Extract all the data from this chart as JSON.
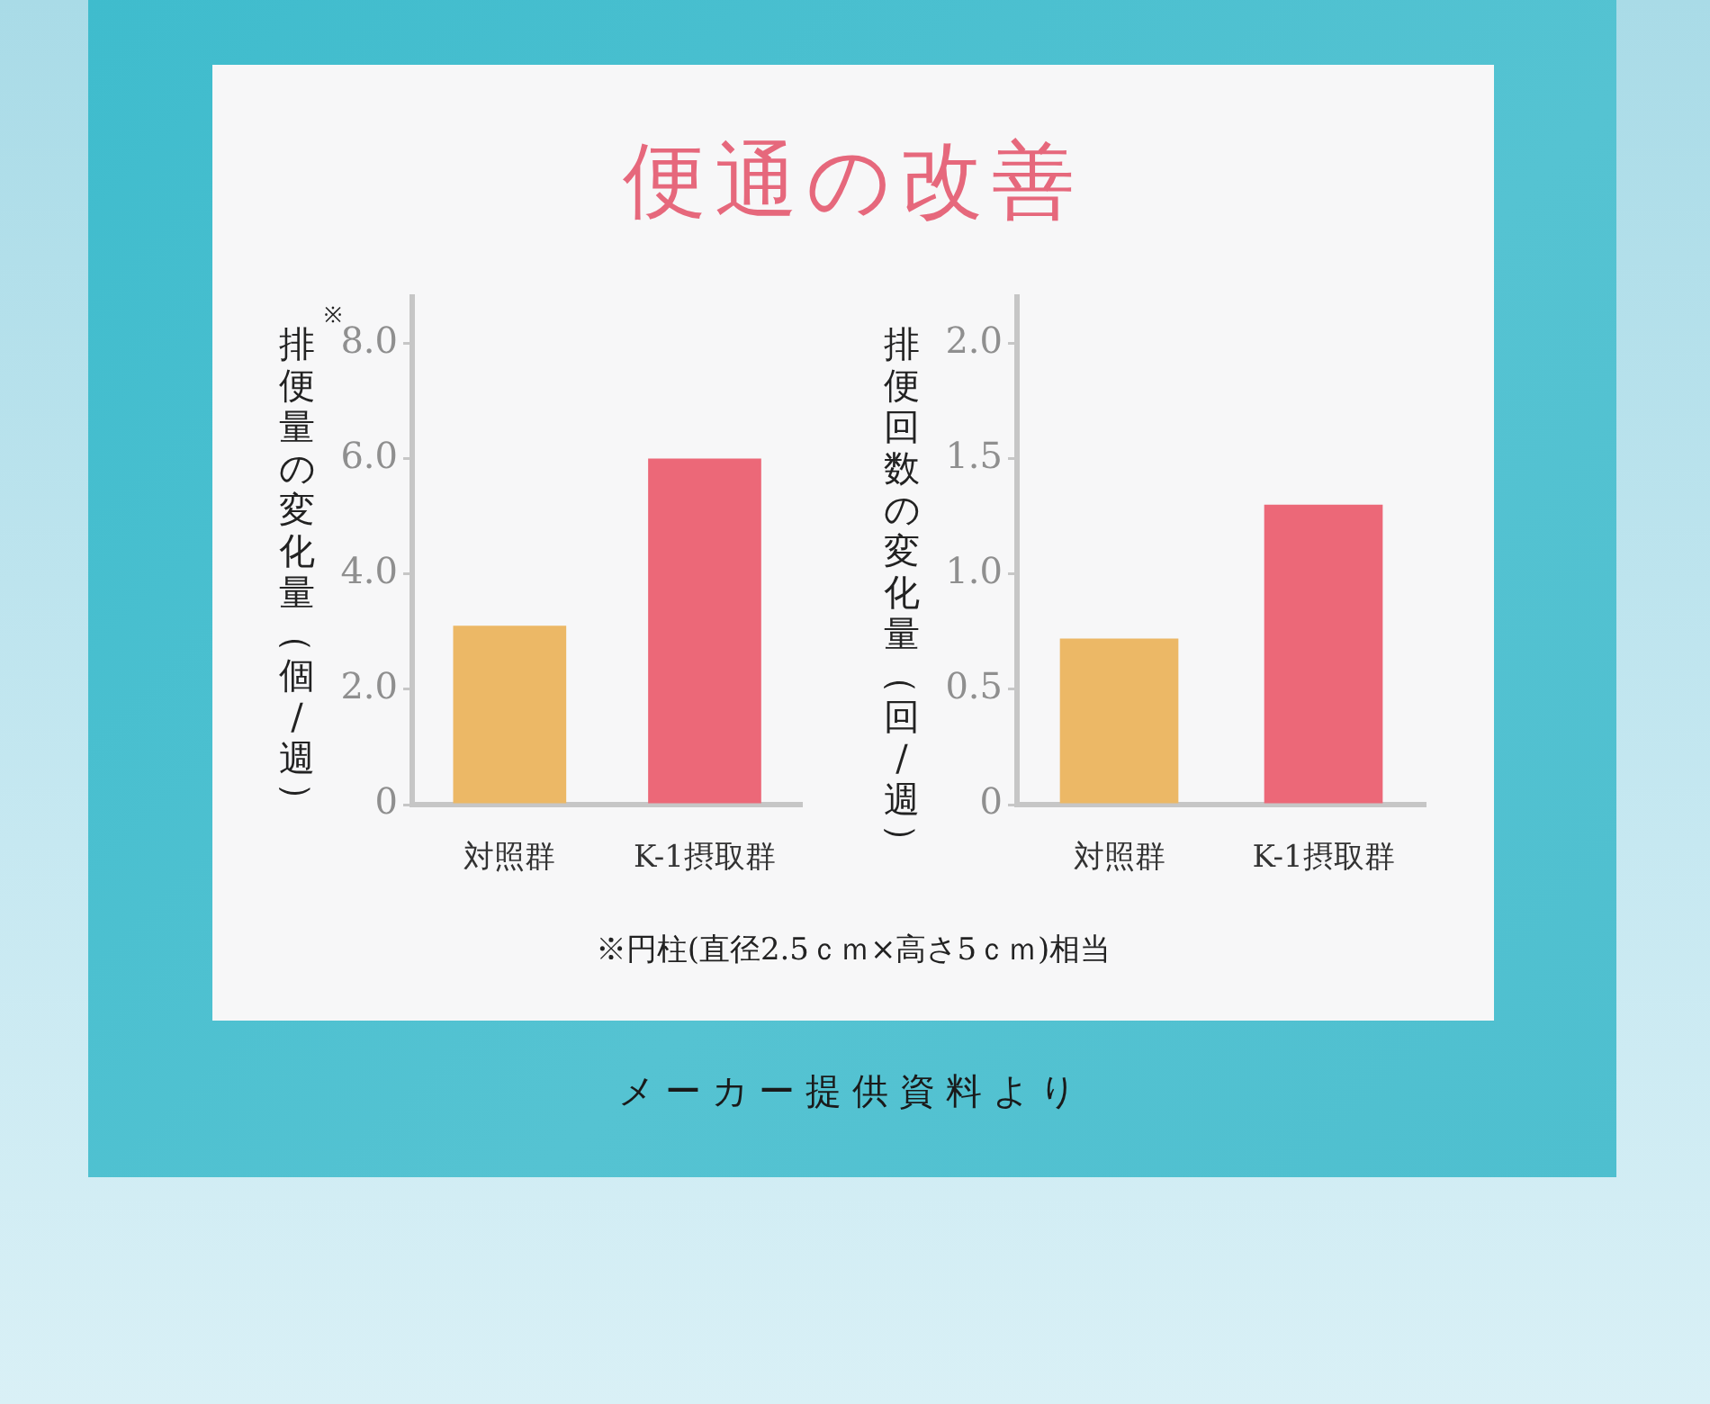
{
  "chart_data": [
    {
      "type": "bar",
      "title": "便通の改善",
      "ylabel": "$^{※}$排便量の変化量（個/週）",
      "categories": [
        "対照群",
        "K-1摂取群"
      ],
      "values": [
        3.1,
        6.0
      ],
      "colors": [
        "#ecb866",
        "#ec6878"
      ],
      "ylim": [
        0,
        8.8
      ],
      "yticks": [
        0,
        {
          "value": 2,
          "label": "2.0"
        },
        {
          "value": 4,
          "label": "4.0"
        },
        {
          "value": 6,
          "label": "6.0"
        },
        {
          "value": 8,
          "label": "8.0"
        }
      ],
      "annotations": [
        "※円柱(直径2.5ｃｍ×高さ5ｃｍ)相当"
      ]
    },
    {
      "type": "bar",
      "ylabel": "排便回数の変化量（回/週）",
      "categories": [
        "対照群",
        "K-1摂取群"
      ],
      "values": [
        0.72,
        1.3
      ],
      "colors": [
        "#ecb866",
        "#ec6878"
      ],
      "ylim": [
        0,
        2.2
      ],
      "yticks": [
        0,
        0.5,
        {
          "value": 1,
          "label": "1.0"
        },
        1.5,
        {
          "value": 2,
          "label": "2.0"
        }
      ],
      "annotations": [
        "メーカー提供資料より"
      ]
    }
  ]
}
